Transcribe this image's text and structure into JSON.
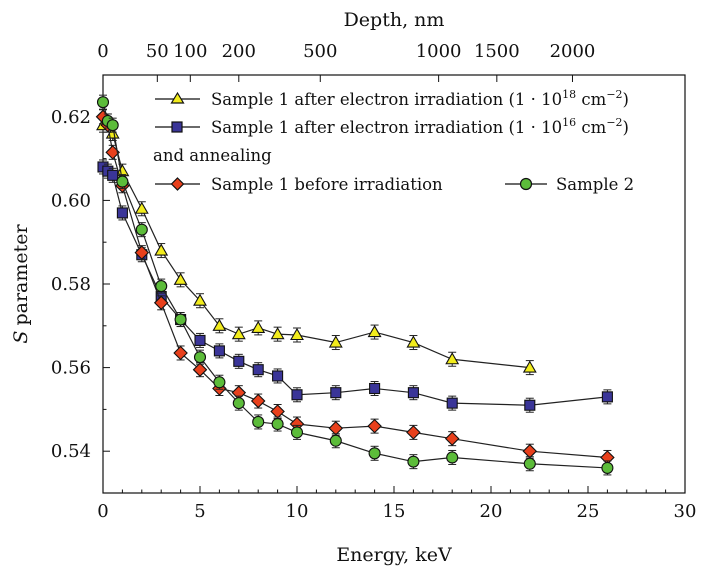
{
  "chart_data": {
    "type": "scatter",
    "xlabel": "Energy, keV",
    "ylabel_italic": "S",
    "ylabel": "parameter",
    "top_axis_label": "Depth, nm",
    "xlim": [
      0,
      30
    ],
    "ylim": [
      0.53,
      0.63
    ],
    "x_ticks": [
      0,
      5,
      10,
      15,
      20,
      25,
      30
    ],
    "y_ticks": [
      0.54,
      0.56,
      0.58,
      0.6,
      0.62
    ],
    "y_tick_labels": [
      "0.54",
      "0.56",
      "0.58",
      "0.60",
      "0.62"
    ],
    "top_ticks": [
      {
        "label": "0",
        "energy": 0
      },
      {
        "label": "50",
        "energy": 2.8
      },
      {
        "label": "100",
        "energy": 4.5
      },
      {
        "label": "200",
        "energy": 7.0
      },
      {
        "label": "500",
        "energy": 11.2
      },
      {
        "label": "1000",
        "energy": 17.3
      },
      {
        "label": "1500",
        "energy": 20.3
      },
      {
        "label": "2000",
        "energy": 24.2
      }
    ],
    "grid": false,
    "legend_placement": "top",
    "series": [
      {
        "name": "Sample 1 after electron irradiation (1 · 10¹⁸ cm⁻²)",
        "marker": "triangle",
        "color": "#f2ec1c",
        "x": [
          0,
          0.25,
          0.5,
          1,
          2,
          3,
          4,
          5,
          6,
          7,
          8,
          9,
          10,
          12,
          14,
          16,
          18,
          22
        ],
        "y": [
          0.618,
          0.619,
          0.616,
          0.607,
          0.598,
          0.588,
          0.581,
          0.576,
          0.57,
          0.568,
          0.5695,
          0.568,
          0.5678,
          0.566,
          0.5685,
          0.566,
          0.562,
          0.56
        ]
      },
      {
        "name": "Sample 1 after electron irradiation (1 · 10¹⁶ cm⁻²) and annealing",
        "marker": "square",
        "color": "#3a3598",
        "x": [
          0,
          0.25,
          0.5,
          1,
          2,
          3,
          4,
          5,
          6,
          7,
          8,
          9,
          10,
          12,
          14,
          16,
          18,
          22,
          26
        ],
        "y": [
          0.608,
          0.607,
          0.606,
          0.597,
          0.587,
          0.577,
          0.5715,
          0.5665,
          0.564,
          0.5615,
          0.5595,
          0.558,
          0.5535,
          0.554,
          0.555,
          0.554,
          0.5515,
          0.551,
          0.553
        ]
      },
      {
        "name": "Sample 1 before irradiation",
        "marker": "diamond",
        "color": "#e8401c",
        "x": [
          0,
          0.25,
          0.5,
          1,
          2,
          3,
          4,
          5,
          6,
          7,
          8,
          9,
          10,
          12,
          14,
          16,
          18,
          22,
          26
        ],
        "y": [
          0.62,
          0.618,
          0.6115,
          0.6035,
          0.5875,
          0.5755,
          0.5635,
          0.5595,
          0.555,
          0.554,
          0.552,
          0.5495,
          0.5465,
          0.5455,
          0.546,
          0.5445,
          0.543,
          0.54,
          0.5385
        ]
      },
      {
        "name": "Sample 2",
        "marker": "circle",
        "color": "#5cbc3a",
        "x": [
          0,
          0.25,
          0.5,
          1,
          2,
          3,
          4,
          5,
          6,
          7,
          8,
          9,
          10,
          12,
          14,
          16,
          18,
          22,
          26
        ],
        "y": [
          0.6235,
          0.619,
          0.618,
          0.6045,
          0.593,
          0.5795,
          0.5715,
          0.5625,
          0.5565,
          0.5515,
          0.547,
          0.5465,
          0.5445,
          0.5425,
          0.5395,
          0.5375,
          0.5385,
          0.537,
          0.536
        ]
      }
    ]
  },
  "legend": {
    "row1": {
      "text": "Sample 1 after electron irradiation (1 · 10",
      "sup1": "18",
      "text2": " cm",
      "sup2": "−2",
      "text3": ")"
    },
    "row2": {
      "text": "Sample 1 after electron irradiation (1 · 10",
      "sup1": "16",
      "text2": " cm",
      "sup2": "−2",
      "text3": ")"
    },
    "row2b": "and annealing",
    "row3": "Sample 1 before irradiation",
    "row4": "Sample 2"
  }
}
